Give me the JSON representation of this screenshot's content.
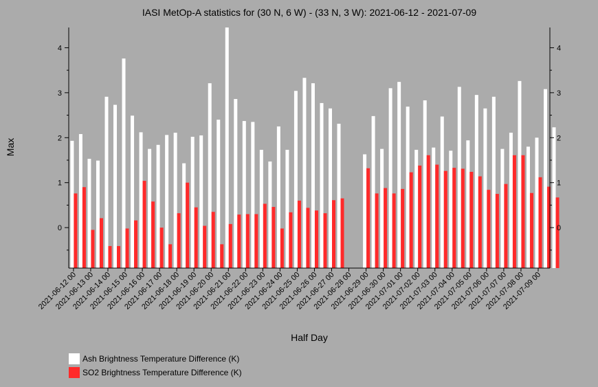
{
  "chart_data": {
    "type": "bar",
    "title": "IASI MetOp-A statistics for (30 N, 6 W) - (33 N, 3 W): 2021-06-12 - 2021-07-09",
    "xlabel": "Half Day",
    "ylabel": "Max",
    "ylim": [
      -0.9,
      4.45
    ],
    "yticks": [
      0,
      1,
      2,
      3,
      4
    ],
    "grid": false,
    "legend_position": "bottom-left",
    "x_tick_labels": [
      "2021-06-12 00",
      "2021-06-13 00",
      "2021-06-14 00",
      "2021-06-15 00",
      "2021-06-16 00",
      "2021-06-17 00",
      "2021-06-18 00",
      "2021-06-19 00",
      "2021-06-20 00",
      "2021-06-21 00",
      "2021-06-22 00",
      "2021-06-23 00",
      "2021-06-24 00",
      "2021-06-25 00",
      "2021-06-26 00",
      "2021-06-27 00",
      "2021-06-28 00",
      "2021-06-29 00",
      "2021-06-30 00",
      "2021-07-01 00",
      "2021-07-02 00",
      "2021-07-03 00",
      "2021-07-04 00",
      "2021-07-05 00",
      "2021-07-06 00",
      "2021-07-07 00",
      "2021-07-08 00",
      "2021-07-09 00"
    ],
    "series": [
      {
        "name": "Ash Brightness Temperature Difference (K)",
        "color": "#ffffff",
        "values": [
          1.93,
          2.08,
          1.53,
          1.49,
          2.91,
          2.73,
          3.76,
          2.49,
          2.12,
          1.75,
          1.84,
          2.06,
          2.11,
          1.43,
          2.02,
          2.05,
          3.21,
          2.4,
          4.45,
          2.86,
          2.37,
          2.35,
          1.73,
          1.47,
          2.25,
          1.73,
          3.04,
          3.33,
          3.21,
          2.77,
          2.65,
          2.31,
          null,
          null,
          1.63,
          2.48,
          1.75,
          3.1,
          3.24,
          2.69,
          1.73,
          2.83,
          1.78,
          2.47,
          1.71,
          3.13,
          1.94,
          2.95,
          2.65,
          2.91,
          1.75,
          2.11,
          3.26,
          1.8,
          2.0,
          3.08,
          2.23
        ]
      },
      {
        "name": "SO2 Brightness Temperature Difference (K)",
        "color": "#ff2a2a",
        "values": [
          0.76,
          0.9,
          -0.05,
          0.21,
          -0.41,
          -0.41,
          -0.02,
          0.16,
          1.04,
          0.58,
          0.0,
          -0.37,
          0.32,
          1.0,
          0.45,
          0.04,
          0.35,
          -0.37,
          0.08,
          0.29,
          0.3,
          0.3,
          0.53,
          0.46,
          -0.02,
          0.34,
          0.6,
          0.44,
          0.38,
          0.32,
          0.61,
          0.65,
          null,
          null,
          1.32,
          0.76,
          0.88,
          0.76,
          0.86,
          1.23,
          1.38,
          1.61,
          1.4,
          1.26,
          1.33,
          1.31,
          1.24,
          1.14,
          0.84,
          0.75,
          0.97,
          1.61,
          1.61,
          0.77,
          1.12,
          0.91,
          0.67
        ]
      }
    ]
  }
}
